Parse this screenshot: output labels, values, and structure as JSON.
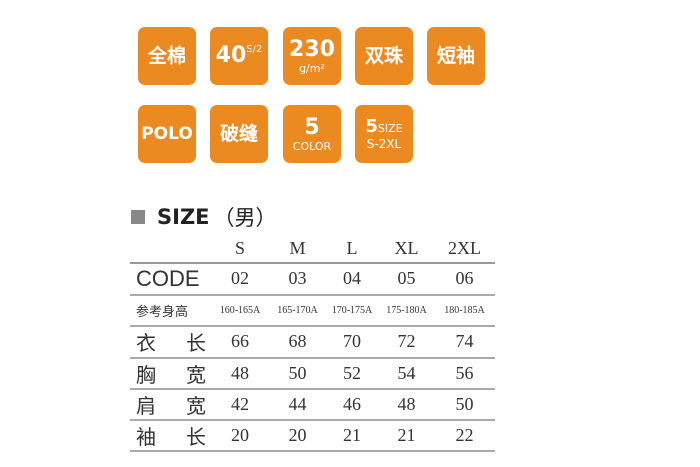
{
  "badges": [
    {
      "main": "全棉"
    },
    {
      "main": "40",
      "sup": "S/2"
    },
    {
      "main": "230",
      "sub": "g/m²"
    },
    {
      "main": "双珠"
    },
    {
      "main": "短袖"
    },
    {
      "main": "POLO"
    },
    {
      "main": "破缝"
    },
    {
      "main": "5",
      "sub": "COLOR"
    },
    {
      "main": "5",
      "sup": "SIZE",
      "sub": "S-2XL"
    }
  ],
  "accent": "#EC8A22",
  "size_title": "SIZE",
  "size_gender": "（男）",
  "table": {
    "headers": [
      "S",
      "M",
      "L",
      "XL",
      "2XL"
    ],
    "rows": [
      {
        "label": [
          "CODE"
        ],
        "values": [
          "02",
          "03",
          "04",
          "05",
          "06"
        ]
      },
      {
        "label": [
          "参考身高"
        ],
        "values": [
          "160-165A",
          "165-170A",
          "170-175A",
          "175-180A",
          "180-185A"
        ]
      },
      {
        "label": [
          "衣",
          "长"
        ],
        "values": [
          "66",
          "68",
          "70",
          "72",
          "74"
        ]
      },
      {
        "label": [
          "胸",
          "宽"
        ],
        "values": [
          "48",
          "50",
          "52",
          "54",
          "56"
        ]
      },
      {
        "label": [
          "肩",
          "宽"
        ],
        "values": [
          "42",
          "44",
          "46",
          "48",
          "50"
        ]
      },
      {
        "label": [
          "袖",
          "长"
        ],
        "values": [
          "20",
          "20",
          "21",
          "21",
          "22"
        ]
      }
    ]
  }
}
